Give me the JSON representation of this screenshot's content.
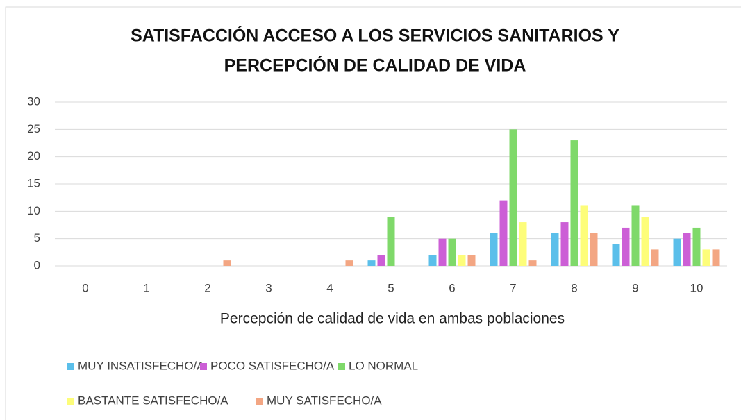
{
  "chart_data": {
    "type": "bar",
    "title": [
      "SATISFACCIÓN ACCESO A LOS SERVICIOS SANITARIOS Y",
      "PERCEPCIÓN DE CALIDAD DE VIDA"
    ],
    "x_label": "Percepción de calidad de vida en ambas poblaciones",
    "categories": [
      "0",
      "1",
      "2",
      "3",
      "4",
      "5",
      "6",
      "7",
      "8",
      "9",
      "10"
    ],
    "series": [
      {
        "name": "MUY INSATISFECHO/A",
        "color": "#5bbfea",
        "values": [
          0,
          0,
          0,
          0,
          0,
          1,
          2,
          6,
          6,
          4,
          5
        ]
      },
      {
        "name": "POCO SATISFECHO/A",
        "color": "#cc5fd6",
        "values": [
          0,
          0,
          0,
          0,
          0,
          2,
          5,
          12,
          8,
          7,
          6
        ]
      },
      {
        "name": "LO NORMAL",
        "color": "#7fd96a",
        "values": [
          0,
          0,
          0,
          0,
          0,
          9,
          5,
          25,
          23,
          11,
          7
        ]
      },
      {
        "name": "BASTANTE SATISFECHO/A",
        "color": "#fdfd7a",
        "values": [
          0,
          0,
          0,
          0,
          0,
          0,
          2,
          8,
          11,
          9,
          3
        ]
      },
      {
        "name": "MUY SATISFECHO/A",
        "color": "#f3a683",
        "values": [
          0,
          0,
          1,
          0,
          1,
          0,
          2,
          1,
          6,
          3,
          3
        ]
      }
    ],
    "ylim": [
      0,
      30
    ],
    "yticks": [
      0,
      5,
      10,
      15,
      20,
      25,
      30
    ],
    "grid": true,
    "legend": "bottom"
  }
}
